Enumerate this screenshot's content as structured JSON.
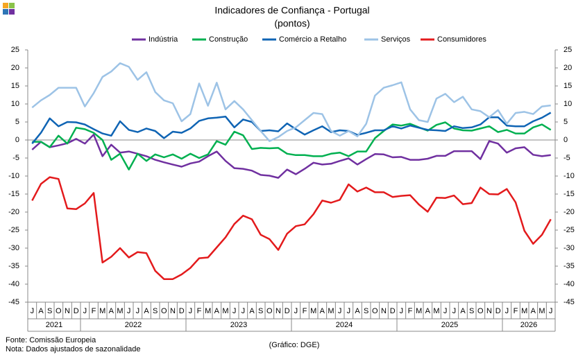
{
  "chart_data": {
    "type": "line",
    "title": "Indicadores de Confiança - Portugal",
    "subtitle": "(pontos)",
    "categories": [
      "J",
      "A",
      "S",
      "O",
      "N",
      "D",
      "J",
      "F",
      "M",
      "A",
      "M",
      "J",
      "J",
      "A",
      "S",
      "O",
      "N",
      "D",
      "J",
      "F",
      "M",
      "A",
      "M",
      "J",
      "J",
      "A",
      "S",
      "O",
      "N",
      "D",
      "J",
      "F",
      "M",
      "A",
      "M",
      "J",
      "J",
      "A",
      "S",
      "O",
      "N",
      "D",
      "J",
      "F",
      "M",
      "A",
      "M",
      "J",
      "J",
      "A",
      "S",
      "O",
      "N",
      "D",
      "J",
      "F",
      "M",
      "A",
      "M",
      "J"
    ],
    "years": [
      "2021",
      "2022",
      "2023",
      "2024",
      "2025",
      "2026"
    ],
    "series": [
      {
        "name": "Indústria",
        "color": "#7030a0",
        "values": [
          -2.7,
          -0.5,
          -2,
          -1.5,
          -0.9,
          0.3,
          -1,
          1.5,
          -4.5,
          -1.3,
          -3.5,
          -3.2,
          -3.8,
          -4.5,
          -5.5,
          -6.2,
          -6.8,
          -7.4,
          -6.5,
          -6,
          -4.5,
          -3.2,
          -5.8,
          -7.8,
          -8,
          -8.5,
          -9.7,
          -9.9,
          -10.5,
          -8.2,
          -9.5,
          -8,
          -6.3,
          -6.8,
          -6.6,
          -5.8,
          -5.1,
          -6.8,
          -5.3,
          -3.9,
          -4,
          -4.8,
          -4.7,
          -5.5,
          -5.5,
          -5.2,
          -4.4,
          -4.4,
          -3.1,
          -3.1,
          -3.1,
          -5.3,
          -0.3,
          -1,
          -3.5,
          -2.3,
          -2,
          -4.1,
          -4.5,
          -4.2
        ]
      },
      {
        "name": "Construção",
        "color": "#00b050",
        "values": [
          -0.5,
          -0.5,
          -2,
          1.2,
          -1,
          3.4,
          3,
          2,
          0,
          -5.5,
          -3.8,
          -8.2,
          -3.8,
          -5.8,
          -4,
          -4.8,
          -4,
          -5.2,
          -3.8,
          -5,
          -4,
          -0.3,
          -1.3,
          2.3,
          1.3,
          -2.5,
          -2.2,
          -2.3,
          -2.2,
          -3.8,
          -4.2,
          -4.2,
          -4.5,
          -4.5,
          -3.8,
          -3.5,
          -4.5,
          -3.2,
          -3.2,
          0.5,
          2.5,
          4.3,
          4,
          4.5,
          3.5,
          2.6,
          4.2,
          4.9,
          3.2,
          2.7,
          2.6,
          3.2,
          3.8,
          2.2,
          2.8,
          1.8,
          1.8,
          3.5,
          4.3,
          2.8
        ]
      },
      {
        "name": "Comércio a Retalho",
        "color": "#0f64b4",
        "values": [
          -1,
          2,
          6,
          3.8,
          5,
          4.9,
          4.3,
          3,
          1.8,
          1.2,
          5.2,
          2.8,
          2.2,
          3.2,
          2.5,
          0.5,
          2.3,
          2,
          3.2,
          5.3,
          6,
          6.2,
          6.5,
          3.5,
          5.7,
          5,
          2.5,
          2.7,
          2.4,
          4.6,
          3,
          1.5,
          2.7,
          3.8,
          2.2,
          2.7,
          2.5,
          1.4,
          2,
          2.7,
          2.7,
          3.8,
          3.2,
          4,
          3.4,
          2.8,
          2.7,
          2.5,
          3.8,
          3.3,
          3.5,
          4.3,
          6.3,
          6.3,
          4,
          3.8,
          3.8,
          5.2,
          6.2,
          7.6
        ]
      },
      {
        "name": "Serviços",
        "color": "#9dc3e6",
        "values": [
          9,
          11,
          12.5,
          14.5,
          14.5,
          14.5,
          9.3,
          13,
          17.5,
          19,
          21.3,
          20.3,
          16.7,
          18.8,
          13.3,
          11,
          10.2,
          5.2,
          7.2,
          15.7,
          9.5,
          15.9,
          8.5,
          10.8,
          8.5,
          5.5,
          2.5,
          -0.3,
          0.8,
          2.5,
          3.5,
          5.5,
          7.5,
          7.2,
          2.5,
          1.2,
          2.5,
          1,
          4.5,
          12.3,
          14.5,
          15.2,
          16,
          8.5,
          5.5,
          5,
          11.5,
          12.8,
          10.5,
          12,
          8.5,
          8,
          6.3,
          8.3,
          4.5,
          7.5,
          7.8,
          7.2,
          9.3,
          9.6
        ]
      },
      {
        "name": "Consumidores",
        "color": "#e31a1c",
        "values": [
          -16.8,
          -12.2,
          -10.3,
          -10.8,
          -19,
          -19.2,
          -17.6,
          -14.7,
          -34,
          -32.4,
          -30,
          -32.6,
          -31.1,
          -31.4,
          -36.3,
          -38.6,
          -38.6,
          -37.3,
          -35.5,
          -32.8,
          -32.6,
          -29.8,
          -27,
          -23.3,
          -21,
          -22,
          -26.3,
          -27.5,
          -30.5,
          -26,
          -23.9,
          -23.4,
          -20.6,
          -16.8,
          -17.4,
          -16.6,
          -12.3,
          -14.3,
          -13.2,
          -14.5,
          -14.5,
          -15.8,
          -15.5,
          -15.3,
          -17.9,
          -19.9,
          -16,
          -16.1,
          -15.4,
          -17.8,
          -17.5,
          -13.2,
          -15,
          -15.1,
          -13.6,
          -17.3,
          -25.2,
          -28.8,
          -26.3,
          -22
        ]
      }
    ],
    "ylim": [
      -45,
      25
    ],
    "yticks": [
      -45,
      -40,
      -35,
      -30,
      -25,
      -20,
      -15,
      -10,
      -5,
      0,
      5,
      10,
      15,
      20,
      25
    ],
    "y2lim": [
      -45,
      25
    ],
    "y2ticks": [
      -45,
      -40,
      -35,
      -30,
      -25,
      -20,
      -15,
      -10,
      -5,
      0,
      5,
      10,
      15,
      20,
      25
    ],
    "legend": "top",
    "source": "Fonte: Comissão Europeia",
    "note": "Nota: Dados ajustados de sazonalidade",
    "credit": "(Gráfico: DGE)"
  }
}
